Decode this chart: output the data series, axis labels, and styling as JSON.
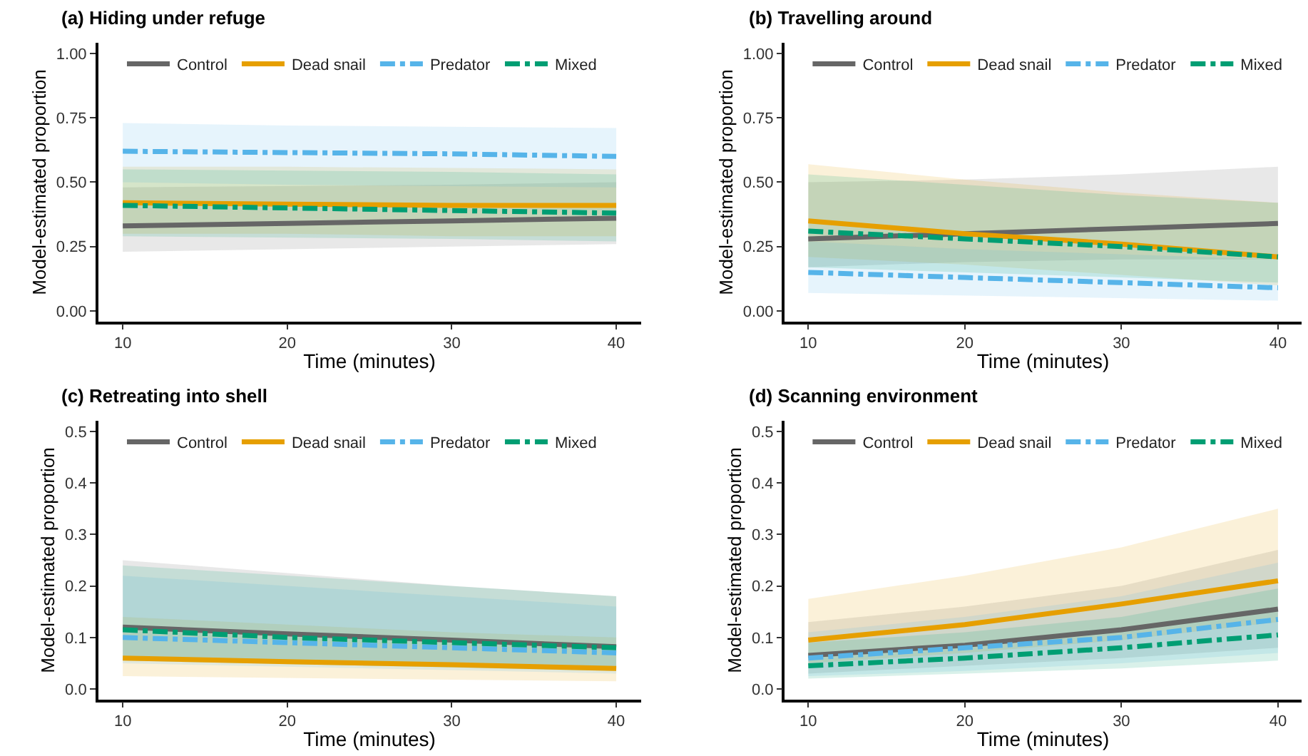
{
  "chart_data": [
    {
      "type": "line",
      "title": "(a) Hiding under refuge",
      "xlabel": "Time (minutes)",
      "ylabel": "Model-estimated proportion",
      "xlim": [
        8.5,
        41.5
      ],
      "xticks": [
        10,
        20,
        30,
        40
      ],
      "ylim": [
        -0.04,
        1.04
      ],
      "yticks": [
        {
          "value": 0,
          "label": "0.00"
        },
        0.25,
        {
          "value": 0.5,
          "label": "0.50"
        },
        0.75,
        {
          "value": 1,
          "label": "1.00"
        }
      ],
      "legend": "top left",
      "grid": false,
      "series": [
        {
          "name": "Control",
          "color": "#666666",
          "line_style": "solid",
          "x": [
            10,
            20,
            30,
            40
          ],
          "values": [
            0.33,
            0.34,
            0.35,
            0.36
          ],
          "lower": [
            0.23,
            0.24,
            0.25,
            0.26
          ],
          "upper": [
            0.48,
            0.485,
            0.49,
            0.5
          ]
        },
        {
          "name": "Dead snail",
          "color": "#e69f00",
          "line_style": "solid",
          "x": [
            10,
            20,
            30,
            40
          ],
          "values": [
            0.42,
            0.415,
            0.41,
            0.41
          ],
          "lower": [
            0.3,
            0.3,
            0.29,
            0.29
          ],
          "upper": [
            0.56,
            0.56,
            0.555,
            0.55
          ]
        },
        {
          "name": "Predator",
          "color": "#56b4e9",
          "line_style": "dashdot",
          "x": [
            10,
            20,
            30,
            40
          ],
          "values": [
            0.62,
            0.615,
            0.61,
            0.6
          ],
          "lower": [
            0.5,
            0.49,
            0.485,
            0.48
          ],
          "upper": [
            0.73,
            0.72,
            0.715,
            0.71
          ]
        },
        {
          "name": "Mixed",
          "color": "#009e73",
          "line_style": "dashdot",
          "x": [
            10,
            20,
            30,
            40
          ],
          "values": [
            0.41,
            0.4,
            0.39,
            0.38
          ],
          "lower": [
            0.29,
            0.285,
            0.28,
            0.27
          ],
          "upper": [
            0.55,
            0.545,
            0.54,
            0.53
          ]
        }
      ]
    },
    {
      "type": "line",
      "title": "(b) Travelling around",
      "xlabel": "Time (minutes)",
      "ylabel": "Model-estimated proportion",
      "xlim": [
        8.5,
        41.5
      ],
      "xticks": [
        10,
        20,
        30,
        40
      ],
      "ylim": [
        -0.04,
        1.04
      ],
      "yticks": [
        {
          "value": 0,
          "label": "0.00"
        },
        0.25,
        {
          "value": 0.5,
          "label": "0.50"
        },
        0.75,
        {
          "value": 1,
          "label": "1.00"
        }
      ],
      "legend": "top left",
      "grid": false,
      "series": [
        {
          "name": "Control",
          "color": "#666666",
          "line_style": "solid",
          "x": [
            10,
            20,
            30,
            40
          ],
          "values": [
            0.28,
            0.3,
            0.32,
            0.34
          ],
          "lower": [
            0.17,
            0.19,
            0.2,
            0.2
          ],
          "upper": [
            0.5,
            0.51,
            0.53,
            0.56
          ]
        },
        {
          "name": "Dead snail",
          "color": "#e69f00",
          "line_style": "solid",
          "x": [
            10,
            20,
            30,
            40
          ],
          "values": [
            0.35,
            0.3,
            0.26,
            0.21
          ],
          "lower": [
            0.21,
            0.18,
            0.14,
            0.1
          ],
          "upper": [
            0.57,
            0.51,
            0.46,
            0.42
          ]
        },
        {
          "name": "Predator",
          "color": "#56b4e9",
          "line_style": "dashdot",
          "x": [
            10,
            20,
            30,
            40
          ],
          "values": [
            0.15,
            0.13,
            0.11,
            0.09
          ],
          "lower": [
            0.07,
            0.06,
            0.05,
            0.04
          ],
          "upper": [
            0.27,
            0.24,
            0.22,
            0.2
          ]
        },
        {
          "name": "Mixed",
          "color": "#009e73",
          "line_style": "dashdot",
          "x": [
            10,
            20,
            30,
            40
          ],
          "values": [
            0.31,
            0.28,
            0.25,
            0.21
          ],
          "lower": [
            0.17,
            0.15,
            0.13,
            0.11
          ],
          "upper": [
            0.53,
            0.49,
            0.45,
            0.42
          ]
        }
      ]
    },
    {
      "type": "line",
      "title": "(c) Retreating into shell",
      "xlabel": "Time (minutes)",
      "ylabel": "Model-estimated proportion",
      "xlim": [
        8.5,
        41.5
      ],
      "xticks": [
        10,
        20,
        30,
        40
      ],
      "ylim": [
        -0.02,
        0.52
      ],
      "yticks": [
        {
          "value": 0,
          "label": "0.0"
        },
        0.1,
        0.2,
        0.3,
        0.4,
        0.5
      ],
      "legend": "top left",
      "grid": false,
      "series": [
        {
          "name": "Control",
          "color": "#666666",
          "line_style": "solid",
          "x": [
            10,
            20,
            30,
            40
          ],
          "values": [
            0.12,
            0.107,
            0.095,
            0.082
          ],
          "lower": [
            0.06,
            0.053,
            0.046,
            0.04
          ],
          "upper": [
            0.25,
            0.225,
            0.2,
            0.18
          ]
        },
        {
          "name": "Dead snail",
          "color": "#e69f00",
          "line_style": "solid",
          "x": [
            10,
            20,
            30,
            40
          ],
          "values": [
            0.06,
            0.053,
            0.047,
            0.04
          ],
          "lower": [
            0.025,
            0.021,
            0.018,
            0.015
          ],
          "upper": [
            0.14,
            0.125,
            0.11,
            0.1
          ]
        },
        {
          "name": "Predator",
          "color": "#56b4e9",
          "line_style": "dashdot",
          "x": [
            10,
            20,
            30,
            40
          ],
          "values": [
            0.1,
            0.09,
            0.08,
            0.07
          ],
          "lower": [
            0.05,
            0.043,
            0.036,
            0.03
          ],
          "upper": [
            0.22,
            0.2,
            0.18,
            0.16
          ]
        },
        {
          "name": "Mixed",
          "color": "#009e73",
          "line_style": "dashdot",
          "x": [
            10,
            20,
            30,
            40
          ],
          "values": [
            0.115,
            0.1,
            0.09,
            0.08
          ],
          "lower": [
            0.055,
            0.048,
            0.041,
            0.035
          ],
          "upper": [
            0.24,
            0.22,
            0.2,
            0.18
          ]
        }
      ]
    },
    {
      "type": "line",
      "title": "(d) Scanning environment",
      "xlabel": "Time (minutes)",
      "ylabel": "Model-estimated proportion",
      "xlim": [
        8.5,
        41.5
      ],
      "xticks": [
        10,
        20,
        30,
        40
      ],
      "ylim": [
        -0.02,
        0.52
      ],
      "yticks": [
        {
          "value": 0,
          "label": "0.0"
        },
        0.1,
        0.2,
        0.3,
        0.4,
        0.5
      ],
      "legend": "top left",
      "grid": false,
      "series": [
        {
          "name": "Control",
          "color": "#666666",
          "line_style": "solid",
          "x": [
            10,
            20,
            30,
            40
          ],
          "values": [
            0.065,
            0.085,
            0.115,
            0.155
          ],
          "lower": [
            0.03,
            0.045,
            0.06,
            0.08
          ],
          "upper": [
            0.13,
            0.16,
            0.2,
            0.27
          ]
        },
        {
          "name": "Dead snail",
          "color": "#e69f00",
          "line_style": "solid",
          "x": [
            10,
            20,
            30,
            40
          ],
          "values": [
            0.095,
            0.125,
            0.165,
            0.21
          ],
          "lower": [
            0.05,
            0.07,
            0.095,
            0.13
          ],
          "upper": [
            0.175,
            0.22,
            0.275,
            0.35
          ]
        },
        {
          "name": "Predator",
          "color": "#56b4e9",
          "line_style": "dashdot",
          "x": [
            10,
            20,
            30,
            40
          ],
          "values": [
            0.06,
            0.08,
            0.1,
            0.135
          ],
          "lower": [
            0.025,
            0.035,
            0.05,
            0.07
          ],
          "upper": [
            0.11,
            0.14,
            0.18,
            0.245
          ]
        },
        {
          "name": "Mixed",
          "color": "#009e73",
          "line_style": "dashdot",
          "x": [
            10,
            20,
            30,
            40
          ],
          "values": [
            0.045,
            0.06,
            0.08,
            0.105
          ],
          "lower": [
            0.02,
            0.03,
            0.04,
            0.055
          ],
          "upper": [
            0.09,
            0.11,
            0.14,
            0.195
          ]
        }
      ]
    }
  ]
}
